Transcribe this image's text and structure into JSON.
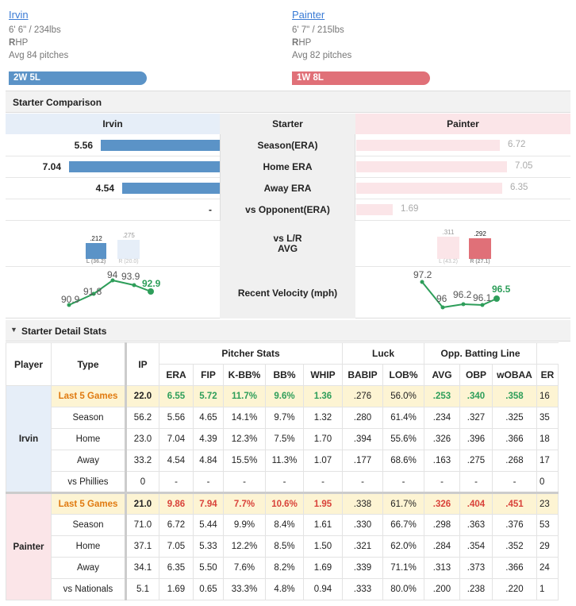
{
  "irvin": {
    "name": "Irvin",
    "size": "6' 6\" / 234lbs",
    "hand_letter": "R",
    "hand_rest": "HP",
    "avg": "Avg 84 pitches",
    "record": "2W 5L",
    "color": "#5b93c7"
  },
  "painter": {
    "name": "Painter",
    "size": "6' 7\" / 215lbs",
    "hand_letter": "R",
    "hand_rest": "HP",
    "avg": "Avg 82 pitches",
    "record": "1W 8L",
    "color": "#e07078"
  },
  "comparison": {
    "title": "Starter Comparison",
    "col_left": "Irvin",
    "col_mid": "Starter",
    "col_right": "Painter",
    "rows": [
      {
        "label": "Season(ERA)",
        "left": "5.56",
        "right": "6.72"
      },
      {
        "label": "Home ERA",
        "left": "7.04",
        "right": "7.05"
      },
      {
        "label": "Away ERA",
        "left": "4.54",
        "right": "6.35"
      },
      {
        "label": "vs Opponent(ERA)",
        "left": "-",
        "right": "1.69"
      }
    ],
    "lr": {
      "label1": "vs L/R",
      "label2": "AVG",
      "left_L": ".212",
      "left_R": ".275",
      "left_L_sub": "L (36.2)",
      "left_R_sub": "R (20.0)",
      "right_L": ".311",
      "right_R": ".292",
      "right_L_sub": "L (43.2)",
      "right_R_sub": "R (27.1)"
    },
    "velocity": {
      "label": "Recent Velocity (mph)",
      "left": [
        "90.9",
        "91.8",
        "94",
        "93.9",
        "92.9"
      ],
      "right": [
        "97.2",
        "96",
        "96.2",
        "96.1",
        "96.5"
      ]
    }
  },
  "detail": {
    "title": "Starter Detail Stats",
    "headers": {
      "player": "Player",
      "type": "Type",
      "ip": "IP",
      "pitcher": "Pitcher Stats",
      "luck": "Luck",
      "opp": "Opp. Batting Line",
      "era": "ERA",
      "fip": "FIP",
      "kbb": "K-BB%",
      "bb": "BB%",
      "whip": "WHIP",
      "babip": "BABIP",
      "lob": "LOB%",
      "avg": "AVG",
      "obp": "OBP",
      "wobaa": "wOBAA",
      "er": "ER"
    },
    "irvin_rows": [
      [
        "Last 5 Games",
        "22.0",
        "6.55",
        "5.72",
        "11.7%",
        "9.6%",
        "1.36",
        ".276",
        "56.0%",
        ".253",
        ".340",
        ".358",
        "16"
      ],
      [
        "Season",
        "56.2",
        "5.56",
        "4.65",
        "14.1%",
        "9.7%",
        "1.32",
        ".280",
        "61.4%",
        ".234",
        ".327",
        ".325",
        "35"
      ],
      [
        "Home",
        "23.0",
        "7.04",
        "4.39",
        "12.3%",
        "7.5%",
        "1.70",
        ".394",
        "55.6%",
        ".326",
        ".396",
        ".366",
        "18"
      ],
      [
        "Away",
        "33.2",
        "4.54",
        "4.84",
        "15.5%",
        "11.3%",
        "1.07",
        ".177",
        "68.6%",
        ".163",
        ".275",
        ".268",
        "17"
      ],
      [
        "vs Phillies",
        "0",
        "-",
        "-",
        "-",
        "-",
        "-",
        "-",
        "-",
        "-",
        "-",
        "-",
        "0"
      ]
    ],
    "painter_rows": [
      [
        "Last 5 Games",
        "21.0",
        "9.86",
        "7.94",
        "7.7%",
        "10.6%",
        "1.95",
        ".338",
        "61.7%",
        ".326",
        ".404",
        ".451",
        "23"
      ],
      [
        "Season",
        "71.0",
        "6.72",
        "5.44",
        "9.9%",
        "8.4%",
        "1.61",
        ".330",
        "66.7%",
        ".298",
        ".363",
        ".376",
        "53"
      ],
      [
        "Home",
        "37.1",
        "7.05",
        "5.33",
        "12.2%",
        "8.5%",
        "1.50",
        ".321",
        "62.0%",
        ".284",
        ".354",
        ".352",
        "29"
      ],
      [
        "Away",
        "34.1",
        "6.35",
        "5.50",
        "7.6%",
        "8.2%",
        "1.69",
        ".339",
        "71.1%",
        ".313",
        ".373",
        ".366",
        "24"
      ],
      [
        "vs Nationals",
        "5.1",
        "1.69",
        "0.65",
        "33.3%",
        "4.8%",
        "0.94",
        ".333",
        "80.0%",
        ".200",
        ".238",
        ".220",
        "1"
      ]
    ]
  },
  "colors": {
    "blue": "#5b93c7",
    "red": "#e07078",
    "green": "#2e9e5a",
    "orange": "#e07a10"
  }
}
